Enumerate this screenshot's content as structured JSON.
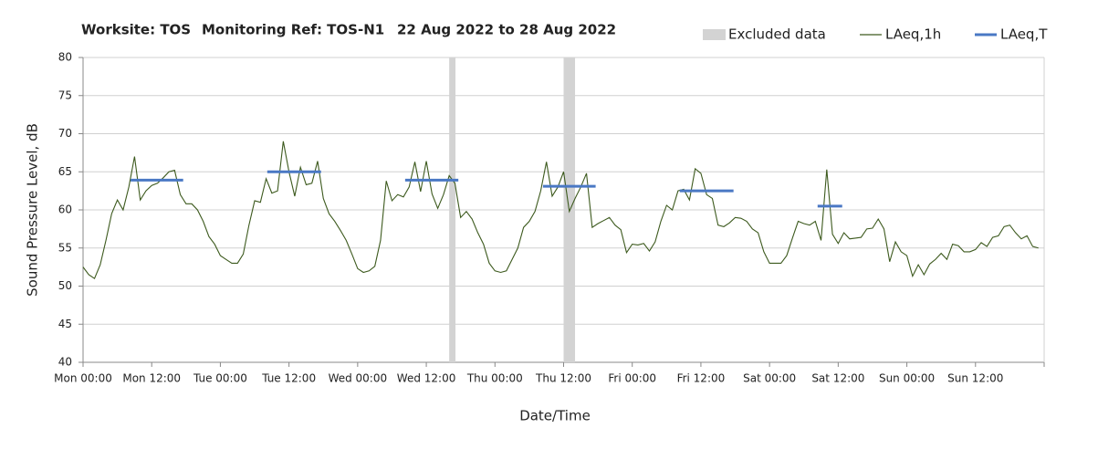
{
  "chart_data": {
    "type": "line",
    "title": [
      "Worksite: TOS",
      "Monitoring Ref: TOS-N1",
      "22 Aug 2022 to 28 Aug 2022"
    ],
    "xlabel": "Date/Time",
    "ylabel": "Sound Pressure Level, dB",
    "xlim": [
      0,
      168
    ],
    "ylim": [
      40,
      80
    ],
    "yticks": [
      40,
      45,
      50,
      55,
      60,
      65,
      70,
      75,
      80
    ],
    "xticks": [
      {
        "value": 0,
        "label": "Mon 00:00"
      },
      {
        "value": 12,
        "label": "Mon 12:00"
      },
      {
        "value": 24,
        "label": "Tue 00:00"
      },
      {
        "value": 36,
        "label": "Tue 12:00"
      },
      {
        "value": 48,
        "label": "Wed 00:00"
      },
      {
        "value": 60,
        "label": "Wed 12:00"
      },
      {
        "value": 72,
        "label": "Thu 00:00"
      },
      {
        "value": 84,
        "label": "Thu 12:00"
      },
      {
        "value": 96,
        "label": "Fri 00:00"
      },
      {
        "value": 108,
        "label": "Fri 12:00"
      },
      {
        "value": 120,
        "label": "Sat 00:00"
      },
      {
        "value": 132,
        "label": "Sat 12:00"
      },
      {
        "value": 144,
        "label": "Sun 00:00"
      },
      {
        "value": 156,
        "label": "Sun 12:00"
      }
    ],
    "grid": true,
    "excluded": {
      "name": "Excluded data",
      "color": "#d3d3d3",
      "ranges": [
        {
          "x0": 64,
          "x1": 65.1
        },
        {
          "x0": 84,
          "x1": 86
        }
      ]
    },
    "series": [
      {
        "name": "LAeq,1h",
        "color": "#3d5a1e",
        "x": [
          0,
          1,
          2,
          3,
          4,
          5,
          6,
          7,
          8,
          9,
          10,
          11,
          12,
          13,
          14,
          15,
          16,
          17,
          18,
          19,
          20,
          21,
          22,
          23,
          24,
          25,
          26,
          27,
          28,
          29,
          30,
          31,
          32,
          33,
          34,
          35,
          36,
          37,
          38,
          39,
          40,
          41,
          42,
          43,
          44,
          45,
          46,
          47,
          48,
          49,
          50,
          51,
          52,
          53,
          54,
          55,
          56,
          57,
          58,
          59,
          60,
          61,
          62,
          63,
          64,
          65,
          66,
          67,
          68,
          69,
          70,
          71,
          72,
          73,
          74,
          75,
          76,
          77,
          78,
          79,
          80,
          81,
          82,
          83,
          84,
          85,
          86,
          87,
          88,
          89,
          90,
          91,
          92,
          93,
          94,
          95,
          96,
          97,
          98,
          99,
          100,
          101,
          102,
          103,
          104,
          105,
          106,
          107,
          108,
          109,
          110,
          111,
          112,
          113,
          114,
          115,
          116,
          117,
          118,
          119,
          120,
          121,
          122,
          123,
          124,
          125,
          126,
          127,
          128,
          129,
          130,
          131,
          132,
          133,
          134,
          135,
          136,
          137,
          138,
          139,
          140,
          141,
          142,
          143,
          144,
          145,
          146,
          147,
          148,
          149,
          150,
          151,
          152,
          153,
          154,
          155,
          156,
          157,
          158,
          159,
          160,
          161,
          162,
          163,
          164,
          165,
          166,
          167
        ],
        "values": [
          52.5,
          51.5,
          51,
          52.8,
          56,
          59.5,
          61.3,
          60,
          63,
          67,
          61.3,
          62.5,
          63.2,
          63.5,
          64.2,
          65,
          65.2,
          62,
          60.8,
          60.8,
          60,
          58.5,
          56.5,
          55.5,
          54,
          53.5,
          53,
          53,
          54.2,
          58,
          61.2,
          61,
          64.1,
          62.2,
          62.5,
          69,
          65,
          61.8,
          65.6,
          63.3,
          63.5,
          66.4,
          61.5,
          59.5,
          58.5,
          57.3,
          56,
          54.2,
          52.3,
          51.8,
          52,
          52.6,
          56,
          63.8,
          61.2,
          62,
          61.7,
          63,
          66.3,
          62.4,
          66.4,
          62.1,
          60.2,
          62,
          64.5,
          63.5,
          59,
          59.8,
          58.8,
          57,
          55.5,
          53,
          52,
          51.8,
          52,
          53.5,
          55,
          57.7,
          58.5,
          59.8,
          62.5,
          66.3,
          61.8,
          63,
          65,
          59.8,
          61.5,
          63,
          64.8,
          57.7,
          58.2,
          58.6,
          59,
          58,
          57.4,
          54.4,
          55.5,
          55.4,
          55.6,
          54.6,
          55.8,
          58.5,
          60.6,
          60,
          62.5,
          62.7,
          61.3,
          65.4,
          64.8,
          62,
          61.5,
          58,
          57.8,
          58.3,
          59,
          58.9,
          58.5,
          57.5,
          57,
          54.5,
          53,
          53,
          53,
          54,
          56.3,
          58.5,
          58.2,
          58,
          58.5,
          56,
          65.3,
          56.8,
          55.6,
          57,
          56.2,
          56.3,
          56.4,
          57.5,
          57.6,
          58.8,
          57.5,
          53.2,
          55.8,
          54.5,
          54,
          51.3,
          52.8,
          51.5,
          52.9,
          53.5,
          54.3,
          53.5,
          55.5,
          55.3,
          54.5,
          54.5,
          54.8,
          55.7,
          55.2,
          56.4,
          56.6,
          57.8,
          58,
          57,
          56.2,
          56.6,
          55.2,
          55
        ]
      },
      {
        "name": "LAeq,T",
        "color": "#4a78c4",
        "segments": [
          {
            "x0": 8.3,
            "x1": 17.5,
            "value": 63.9
          },
          {
            "x0": 32.2,
            "x1": 41.6,
            "value": 65
          },
          {
            "x0": 56.3,
            "x1": 65.6,
            "value": 63.9
          },
          {
            "x0": 80.4,
            "x1": 89.6,
            "value": 63.1
          },
          {
            "x0": 104.3,
            "x1": 113.7,
            "value": 62.5
          },
          {
            "x0": 128.4,
            "x1": 132.7,
            "value": 60.5
          }
        ]
      }
    ]
  }
}
